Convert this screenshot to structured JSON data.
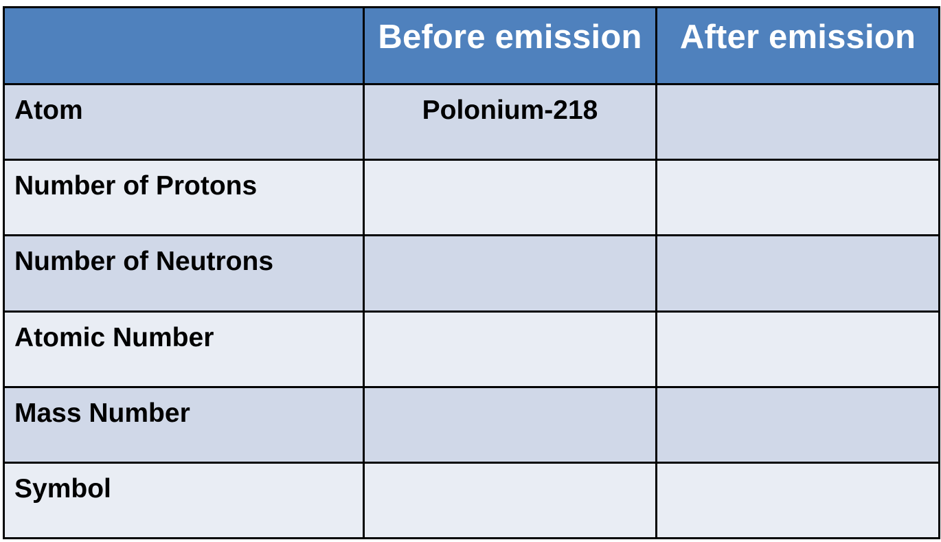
{
  "table": {
    "headers": [
      "",
      "Before emission",
      "After emission"
    ],
    "rows": [
      {
        "label": "Atom",
        "before": "Polonium-218",
        "after": ""
      },
      {
        "label": "Number of Protons",
        "before": "",
        "after": ""
      },
      {
        "label": "Number of Neutrons",
        "before": "",
        "after": ""
      },
      {
        "label": "Atomic Number",
        "before": "",
        "after": ""
      },
      {
        "label": "Mass Number",
        "before": "",
        "after": ""
      },
      {
        "label": "Symbol",
        "before": "",
        "after": ""
      }
    ]
  },
  "colors": {
    "header_bg": "#4f81bd",
    "row_dark": "#d0d8e8",
    "row_light": "#e9edf4",
    "border": "#000000"
  }
}
